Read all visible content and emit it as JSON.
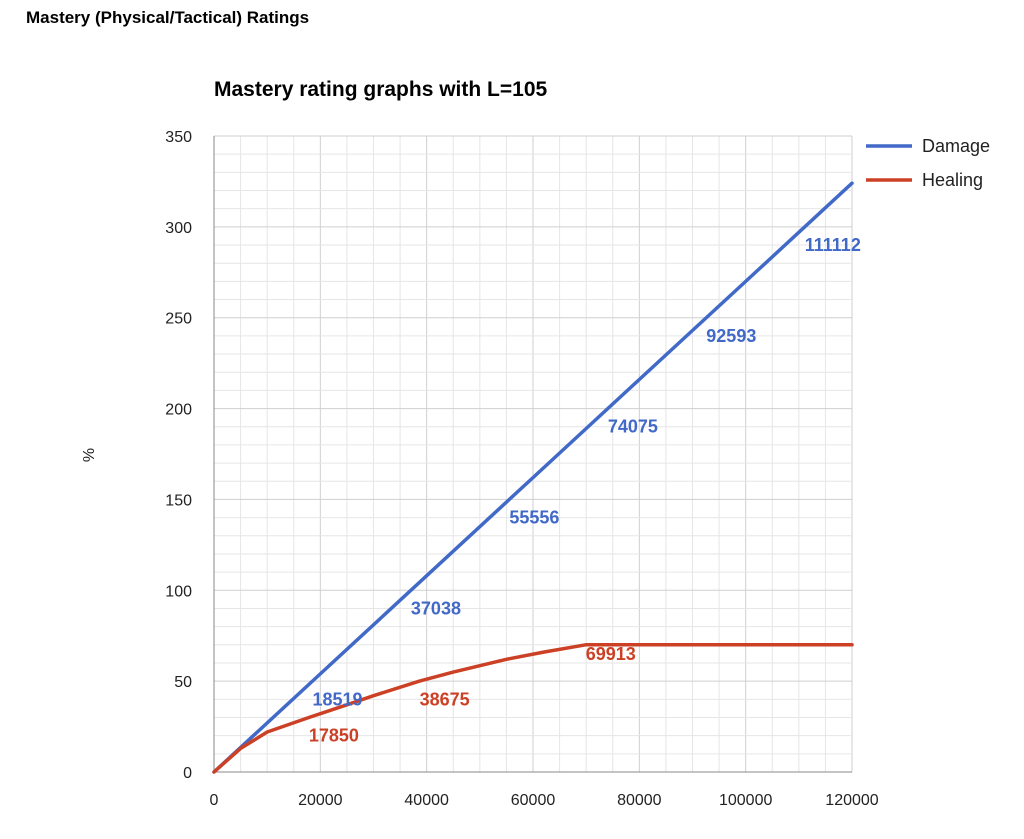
{
  "page": {
    "title": "Mastery (Physical/Tactical) Ratings"
  },
  "colors": {
    "damage": "#4169c8",
    "healing": "#cc4125",
    "grid": "#dddddd",
    "axis": "#999999"
  },
  "chart_data": {
    "type": "line",
    "title": "Mastery rating graphs with L=105",
    "xlabel": "",
    "ylabel": "%",
    "xlim": [
      0,
      120000
    ],
    "ylim": [
      0,
      350
    ],
    "x_ticks": [
      "0",
      "20000",
      "40000",
      "60000",
      "80000",
      "100000",
      "120000"
    ],
    "y_ticks": [
      "0",
      "50",
      "100",
      "150",
      "200",
      "250",
      "300",
      "350"
    ],
    "grid": true,
    "legend_position": "top-right",
    "series": [
      {
        "name": "Damage",
        "color": "#4169c8",
        "x": [
          0,
          20000,
          40000,
          60000,
          80000,
          100000,
          120000
        ],
        "y": [
          0,
          54,
          108,
          162,
          216,
          270,
          324
        ]
      },
      {
        "name": "Healing",
        "color": "#cc4125",
        "x": [
          0,
          5000,
          10000,
          17850,
          25000,
          30000,
          38675,
          45000,
          55000,
          62000,
          69913,
          80000,
          100000,
          120000
        ],
        "y": [
          0,
          13,
          22,
          30,
          37,
          42,
          50,
          55,
          62,
          66,
          70,
          70,
          70,
          70
        ]
      }
    ],
    "annotations": [
      {
        "text": "18519",
        "x": 18519,
        "y": 40,
        "color": "#4169c8"
      },
      {
        "text": "37038",
        "x": 37038,
        "y": 90,
        "color": "#4169c8"
      },
      {
        "text": "55556",
        "x": 55556,
        "y": 140,
        "color": "#4169c8"
      },
      {
        "text": "74075",
        "x": 74075,
        "y": 190,
        "color": "#4169c8"
      },
      {
        "text": "92593",
        "x": 92593,
        "y": 240,
        "color": "#4169c8"
      },
      {
        "text": "111112",
        "x": 111112,
        "y": 290,
        "color": "#4169c8"
      },
      {
        "text": "17850",
        "x": 17850,
        "y": 20,
        "color": "#cc4125"
      },
      {
        "text": "38675",
        "x": 38675,
        "y": 40,
        "color": "#cc4125"
      },
      {
        "text": "69913",
        "x": 69913,
        "y": 65,
        "color": "#cc4125"
      }
    ]
  }
}
